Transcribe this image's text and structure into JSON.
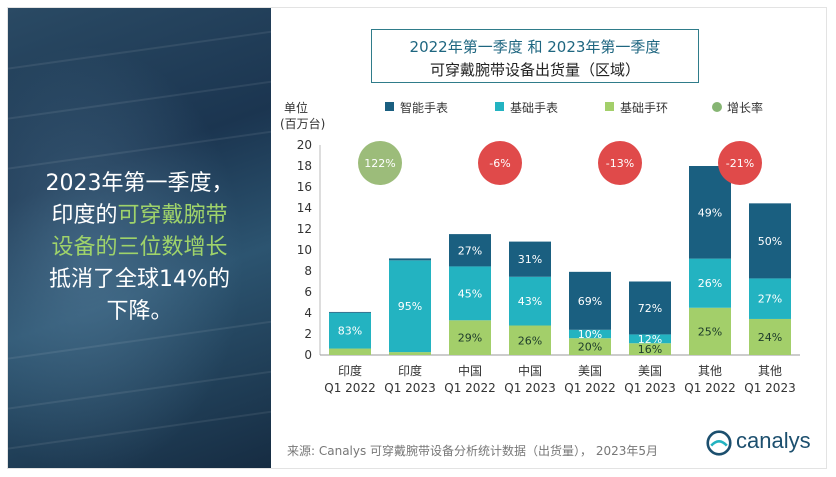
{
  "left_panel": {
    "line1": "2023年第一季度，",
    "line2_a": "印度的",
    "line2_b": "可穿戴腕带",
    "line3": "设备的三位数增长",
    "line4": "抵消了全球14%的",
    "line5": "下降。"
  },
  "title": {
    "line1": "2022年第一季度 和 2023年第一季度",
    "line2": "可穿戴腕带设备出货量（区域）"
  },
  "source": "来源: Canalys 可穿戴腕带设备分析统计数据（出货量），  2023年5月",
  "logo_text": "canalys",
  "chart_data": {
    "type": "bar",
    "stacked": true,
    "ylabel_line1": "单位",
    "ylabel_line2": "(百万台)",
    "ylim": [
      0,
      20
    ],
    "yticks": [
      "0",
      "2",
      "4",
      "6",
      "8",
      "10",
      "12",
      "14",
      "16",
      "18",
      "20"
    ],
    "categories": [
      [
        "印度",
        "Q1 2022"
      ],
      [
        "印度",
        "Q1 2023"
      ],
      [
        "中国",
        "Q1 2022"
      ],
      [
        "中国",
        "Q1 2023"
      ],
      [
        "美国",
        "Q1 2022"
      ],
      [
        "美国",
        "Q1 2023"
      ],
      [
        "其他",
        "Q1 2022"
      ],
      [
        "其他",
        "Q1 2023"
      ]
    ],
    "totals": [
      4.1,
      9.2,
      11.4,
      10.8,
      8.0,
      7.0,
      18.0,
      14.3
    ],
    "series": [
      {
        "name": "基础手环",
        "color": "#a3cf6a",
        "pct": [
          0.15,
          0.03,
          0.29,
          0.26,
          0.2,
          0.16,
          0.25,
          0.24
        ],
        "labels": [
          "",
          "",
          "29%",
          "26%",
          "20%",
          "16%",
          "25%",
          "24%"
        ]
      },
      {
        "name": "基础手表",
        "color": "#23b3c1",
        "pct": [
          0.83,
          0.95,
          0.45,
          0.43,
          0.1,
          0.12,
          0.26,
          0.27
        ],
        "labels": [
          "83%",
          "95%",
          "45%",
          "43%",
          "10%",
          "12%",
          "26%",
          "27%"
        ]
      },
      {
        "name": "智能手表",
        "color": "#1a5f80",
        "pct": [
          0.02,
          0.02,
          0.27,
          0.31,
          0.69,
          0.72,
          0.49,
          0.5
        ],
        "labels": [
          "",
          "",
          "27%",
          "31%",
          "69%",
          "72%",
          "49%",
          "50%"
        ]
      }
    ],
    "legend": [
      {
        "name": "智能手表",
        "color": "#1a5f80",
        "shape": "square"
      },
      {
        "name": "基础手表",
        "color": "#23b3c1",
        "shape": "square"
      },
      {
        "name": "基础手环",
        "color": "#a3cf6a",
        "shape": "square"
      },
      {
        "name": "增长率",
        "color": "#86b573",
        "shape": "circle"
      }
    ],
    "growth": [
      {
        "label": "122%",
        "color": "#9cbc7a"
      },
      {
        "label": "-6%",
        "color": "#e04a4a"
      },
      {
        "label": "-13%",
        "color": "#e04a4a"
      },
      {
        "label": "-21%",
        "color": "#e04a4a"
      }
    ]
  }
}
